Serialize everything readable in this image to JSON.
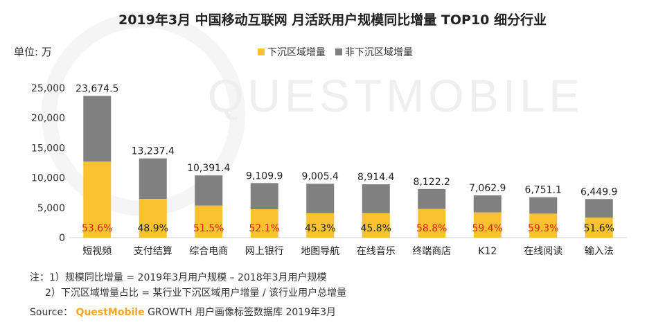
{
  "page": {
    "title": "2019年3月 中国移动互联网 月活跃用户规模同比增量 TOP10 细分行业",
    "unit_label": "单位: 万",
    "watermark": "QUESTMOBILE",
    "notes": [
      "注：1）规模同比增量 = 2019年3月用户规模 – 2018年3月用户规模",
      "2）下沉区域增量占比 = 某行业下沉区域用户增量 / 该行业用户总增量"
    ],
    "source_prefix": "Source：",
    "source_brand": "QuestMobile",
    "source_suffix": "GROWTH 用户画像标签数据库 2019年3月"
  },
  "colors": {
    "lower_tier": "#F9C22E",
    "non_lower_tier": "#808080",
    "share_highlight": "#E0201B",
    "share_normal": "#222222",
    "brand": "#F5A623"
  },
  "chart_data": {
    "type": "bar",
    "stacked": true,
    "categories": [
      "短视频",
      "支付结算",
      "综合电商",
      "网上银行",
      "地图导航",
      "在线音乐",
      "终端商店",
      "K12",
      "在线阅读",
      "输入法"
    ],
    "totals": [
      23674.5,
      13237.4,
      10391.4,
      9109.9,
      9005.4,
      8914.4,
      8122.2,
      7062.9,
      6751.1,
      6449.9
    ],
    "total_labels": [
      "23,674.5",
      "13,237.4",
      "10,391.4",
      "9,109.9",
      "9,005.4",
      "8,914.4",
      "8,122.2",
      "7,062.9",
      "6,751.1",
      "6,449.9"
    ],
    "lower_tier_share_labels": [
      "53.6%",
      "48.9%",
      "51.5%",
      "52.1%",
      "45.3%",
      "45.8%",
      "58.8%",
      "59.4%",
      "59.3%",
      "51.6%"
    ],
    "lower_tier_share": [
      53.6,
      48.9,
      51.5,
      52.1,
      45.3,
      45.8,
      58.8,
      59.4,
      59.3,
      51.6
    ],
    "highlight_share": [
      true,
      false,
      true,
      true,
      false,
      false,
      true,
      true,
      true,
      false
    ],
    "series": [
      {
        "name": "下沉区域增量",
        "color": "#F9C22E"
      },
      {
        "name": "非下沉区域增量",
        "color": "#808080"
      }
    ],
    "ylim": [
      0,
      25000
    ],
    "yticks": [
      0,
      5000,
      10000,
      15000,
      20000,
      25000
    ],
    "ytick_labels": [
      "0",
      "5,000",
      "10,000",
      "15,000",
      "20,000",
      "25,000"
    ],
    "legend_position": "top-center",
    "grid": false
  }
}
